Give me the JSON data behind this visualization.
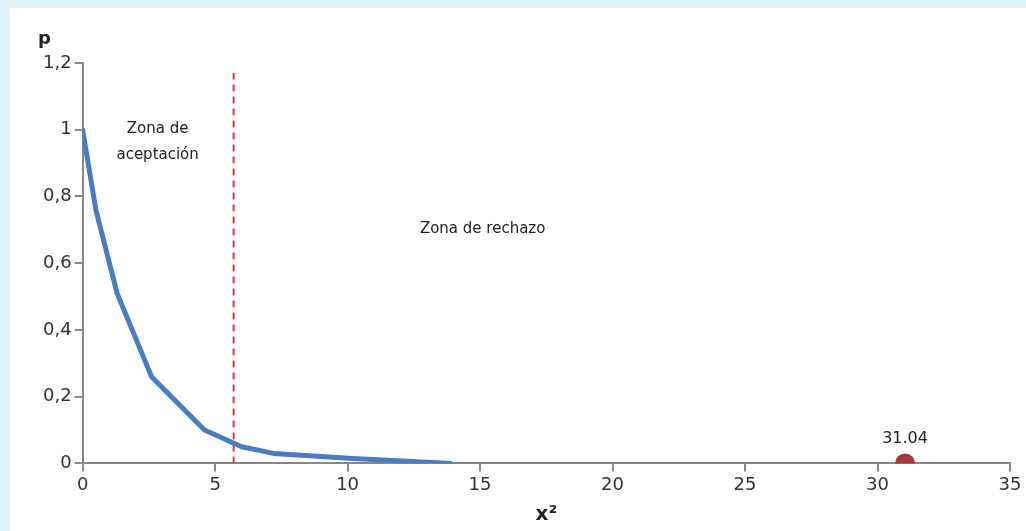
{
  "chart_data": {
    "type": "line",
    "xlabel": "x²",
    "ylabel": "p",
    "xlim": [
      0,
      35
    ],
    "xticks": [
      0,
      5,
      10,
      15,
      20,
      25,
      30,
      35
    ],
    "ylim": [
      0,
      1.2
    ],
    "yticks": [
      {
        "value": 0,
        "label": "0"
      },
      {
        "value": 0.2,
        "label": "0,2"
      },
      {
        "value": 0.4,
        "label": "0,4"
      },
      {
        "value": 0.6,
        "label": "0,6"
      },
      {
        "value": 0.8,
        "label": "0,8"
      },
      {
        "value": 1,
        "label": "1"
      },
      {
        "value": 1.2,
        "label": "1,2"
      }
    ],
    "grid": false,
    "legend": false,
    "line_style": "solid",
    "series": [
      {
        "type": "line",
        "color": "#4a7cc4",
        "marker": "none",
        "x": [
          0,
          0.5,
          1.3,
          2.6,
          4.6,
          6,
          7.2,
          10.2,
          13.9
        ],
        "values": [
          1,
          0.76,
          0.51,
          0.26,
          0.1,
          0.05,
          0.03,
          0.015,
          0
        ]
      },
      {
        "type": "scatter",
        "color": "#a33a3a",
        "marker": "circle",
        "x": [
          31.04
        ],
        "values": [
          0
        ]
      }
    ],
    "ref_lines": [
      {
        "axis": "x",
        "value": 5.7,
        "color": "#d03a3a",
        "line_style": "dashed"
      }
    ],
    "annotations": [
      "Zona de aceptación",
      "Zona de rechazo",
      {
        "text": "31.04",
        "x": 31.04,
        "y": 0
      }
    ]
  }
}
